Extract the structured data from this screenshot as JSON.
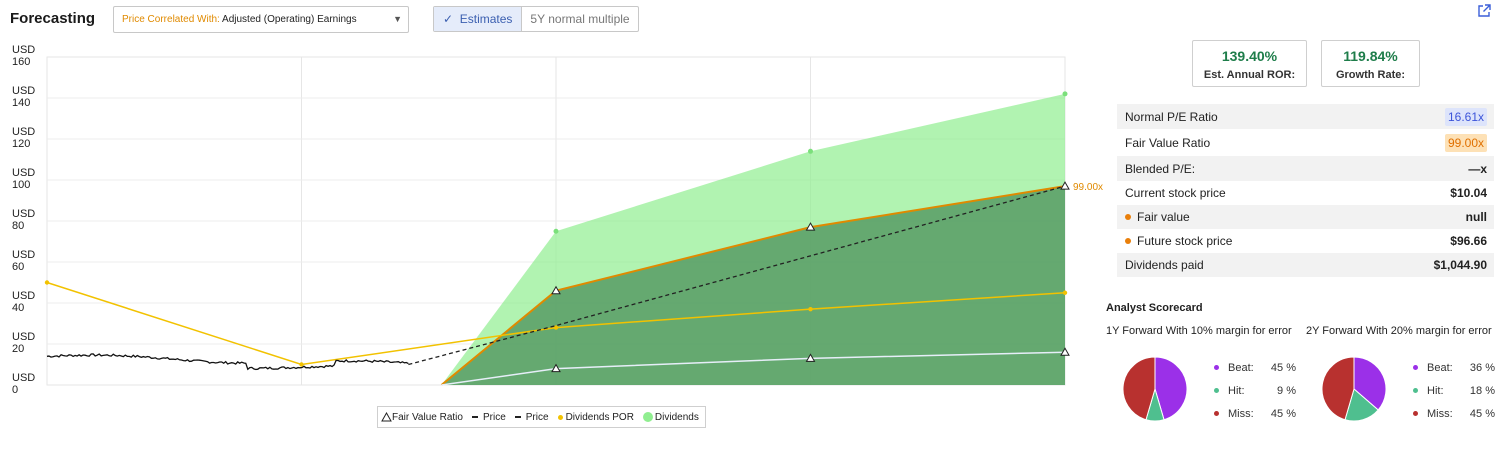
{
  "header": {
    "title": "Forecasting",
    "select_prefix": "Price Correlated With:",
    "select_value": "Adjusted (Operating) Earnings",
    "toggle_estimates": "Estimates",
    "toggle_normal": "5Y normal multiple"
  },
  "axis": {
    "y_labels": [
      {
        "unit": "USD",
        "value": "160"
      },
      {
        "unit": "USD",
        "value": "140"
      },
      {
        "unit": "USD",
        "value": "120"
      },
      {
        "unit": "USD",
        "value": "100"
      },
      {
        "unit": "USD",
        "value": "80"
      },
      {
        "unit": "USD",
        "value": "60"
      },
      {
        "unit": "USD",
        "value": "40"
      },
      {
        "unit": "USD",
        "value": "20"
      },
      {
        "unit": "USD",
        "value": "0"
      }
    ],
    "end_label": "99.00x"
  },
  "chart_data": {
    "type": "area",
    "ylim": [
      0,
      160
    ],
    "grid": true,
    "x_points": [
      0,
      1,
      2,
      3,
      4
    ],
    "series": [
      {
        "name": "Dividends",
        "kind": "area",
        "color": "#90ee90",
        "values": [
          null,
          null,
          75,
          114,
          142
        ]
      },
      {
        "name": "Fair Value Ratio",
        "kind": "area-line",
        "color": "#e08a00",
        "fill": "#5a9e66",
        "values": [
          null,
          null,
          46,
          77,
          97
        ]
      },
      {
        "name": "Dividends POR",
        "kind": "line",
        "color": "#f2c200",
        "values": [
          50,
          10,
          28,
          37,
          45
        ]
      },
      {
        "name": "Price",
        "kind": "dashed",
        "color": "#222222",
        "values": [
          null,
          null,
          29,
          63,
          97
        ]
      },
      {
        "name": "Fair Value",
        "kind": "line",
        "color": "#e6eef8",
        "values": [
          null,
          null,
          8,
          13,
          16
        ]
      }
    ],
    "price_history": {
      "name": "Price",
      "start": 14,
      "end": 10
    }
  },
  "legend": [
    {
      "name": "Fair Value Ratio",
      "marker": "triangle"
    },
    {
      "name": "Price",
      "marker": "dash"
    },
    {
      "name": "Price",
      "marker": "dash"
    },
    {
      "name": "Dividends POR",
      "marker": "dot"
    },
    {
      "name": "Dividends",
      "marker": "green-dot"
    }
  ],
  "kpis": [
    {
      "value": "139.40%",
      "label": "Est. Annual ROR:"
    },
    {
      "value": "119.84%",
      "label": "Growth Rate:"
    }
  ],
  "stats": [
    {
      "label": "Normal P/E Ratio",
      "value": "16.61x",
      "badge": "blue",
      "bullet": false
    },
    {
      "label": "Fair Value Ratio",
      "value": "99.00x",
      "badge": "orange",
      "bullet": false
    },
    {
      "label": "Blended P/E:",
      "value": "—x",
      "badge": "",
      "bullet": false
    },
    {
      "label": "Current stock price",
      "value": "$10.04",
      "badge": "",
      "bullet": false
    },
    {
      "label": "Fair value",
      "value": "null",
      "badge": "",
      "bullet": true
    },
    {
      "label": "Future stock price",
      "value": "$96.66",
      "badge": "",
      "bullet": true
    },
    {
      "label": "Dividends paid",
      "value": "$1,044.90",
      "badge": "",
      "bullet": false
    }
  ],
  "scorecard": {
    "title": "Analyst Scorecard",
    "labels": {
      "beat": "Beat:",
      "hit": "Hit:",
      "miss": "Miss:"
    },
    "colors": {
      "beat": "#9b30e8",
      "hit": "#4fbf8f",
      "miss": "#b8312f"
    },
    "y1": {
      "title": "1Y Forward With 10% margin for error",
      "beat": 45,
      "hit": 9,
      "miss": 45,
      "beat_label": "45 %",
      "hit_label": "9 %",
      "miss_label": "45 %"
    },
    "y2": {
      "title": "2Y Forward With 20% margin for error",
      "beat": 36,
      "hit": 18,
      "miss": 45,
      "beat_label": "36 %",
      "hit_label": "18 %",
      "miss_label": "45 %"
    }
  }
}
